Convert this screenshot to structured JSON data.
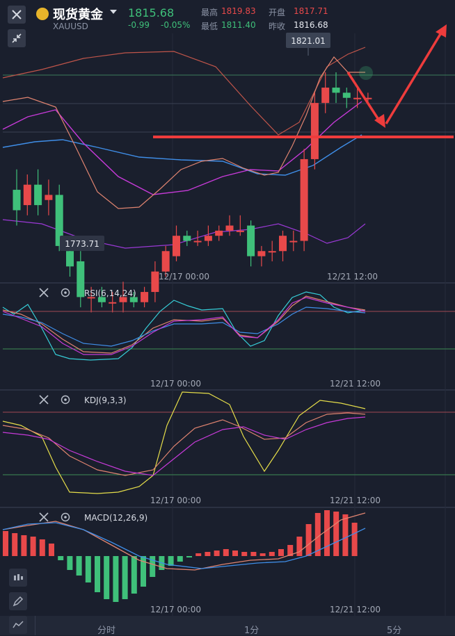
{
  "header": {
    "title": "现货黄金",
    "code": "XAUUSD",
    "price": "1815.68",
    "change": "-0.99",
    "change_pct": "-0.05%",
    "high_label": "最高",
    "high": "1819.83",
    "open_label": "开盘",
    "open": "1817.71",
    "low_label": "最低",
    "low": "1811.40",
    "prev_label": "昨收",
    "prev": "1816.68"
  },
  "main_chart": {
    "max_label": "1821.01",
    "min_label": "1773.71",
    "x_ticks": [
      "12/17 00:00",
      "12/21 12:00"
    ]
  },
  "rsi_panel": {
    "label": "RSI(6,14,24)",
    "x_ticks": [
      "12/17 00:00",
      "12/21 12:00"
    ]
  },
  "kdj_panel": {
    "label": "KDJ(9,3,3)",
    "x_ticks": [
      "12/17 00:00",
      "12/21 12:00"
    ]
  },
  "macd_panel": {
    "label": "MACD(12,26,9)",
    "x_ticks": [
      "12/17 00:00",
      "12/21 12:00"
    ]
  },
  "tabs": [
    "分时",
    "1分",
    "5分"
  ],
  "colors": {
    "up": "#e8494a",
    "down": "#3fc07a",
    "bg": "#1a1f2d"
  },
  "chart_data": {
    "type": "candlestick",
    "candles": [
      {
        "o": 1798,
        "c": 1794,
        "h": 1802,
        "l": 1791
      },
      {
        "o": 1795,
        "c": 1799,
        "h": 1801,
        "l": 1793
      },
      {
        "o": 1799,
        "c": 1795,
        "h": 1802,
        "l": 1793
      },
      {
        "o": 1796,
        "c": 1797,
        "h": 1800,
        "l": 1793
      },
      {
        "o": 1797,
        "c": 1787,
        "h": 1799,
        "l": 1786
      },
      {
        "o": 1786,
        "c": 1783,
        "h": 1789,
        "l": 1781
      },
      {
        "o": 1784,
        "c": 1777,
        "h": 1786,
        "l": 1775
      },
      {
        "o": 1777,
        "c": 1777,
        "h": 1779,
        "l": 1774
      },
      {
        "o": 1777,
        "c": 1776,
        "h": 1779,
        "l": 1775
      },
      {
        "o": 1776,
        "c": 1776,
        "h": 1778,
        "l": 1774
      },
      {
        "o": 1776,
        "c": 1777,
        "h": 1780,
        "l": 1774
      },
      {
        "o": 1777,
        "c": 1776,
        "h": 1778,
        "l": 1775
      },
      {
        "o": 1776,
        "c": 1778,
        "h": 1779,
        "l": 1775
      },
      {
        "o": 1778,
        "c": 1782,
        "h": 1784,
        "l": 1776
      },
      {
        "o": 1782,
        "c": 1786,
        "h": 1787,
        "l": 1781
      },
      {
        "o": 1785,
        "c": 1789,
        "h": 1791,
        "l": 1784
      },
      {
        "o": 1789,
        "c": 1788,
        "h": 1790,
        "l": 1787
      },
      {
        "o": 1788,
        "c": 1788,
        "h": 1790,
        "l": 1787
      },
      {
        "o": 1788,
        "c": 1789,
        "h": 1791,
        "l": 1787
      },
      {
        "o": 1789,
        "c": 1790,
        "h": 1791,
        "l": 1788
      },
      {
        "o": 1790,
        "c": 1791,
        "h": 1793,
        "l": 1789
      },
      {
        "o": 1790,
        "c": 1790,
        "h": 1793,
        "l": 1789
      },
      {
        "o": 1791,
        "c": 1785,
        "h": 1792,
        "l": 1783
      },
      {
        "o": 1785,
        "c": 1786,
        "h": 1787,
        "l": 1783
      },
      {
        "o": 1786,
        "c": 1786,
        "h": 1788,
        "l": 1784
      },
      {
        "o": 1786,
        "c": 1789,
        "h": 1790,
        "l": 1784
      },
      {
        "o": 1788,
        "c": 1788,
        "h": 1790,
        "l": 1786
      },
      {
        "o": 1788,
        "c": 1804,
        "h": 1806,
        "l": 1786
      },
      {
        "o": 1804,
        "c": 1815,
        "h": 1817,
        "l": 1802
      },
      {
        "o": 1815,
        "c": 1818,
        "h": 1821,
        "l": 1813
      },
      {
        "o": 1818,
        "c": 1817,
        "h": 1821,
        "l": 1815
      },
      {
        "o": 1817,
        "c": 1816,
        "h": 1818,
        "l": 1814
      },
      {
        "o": 1816,
        "c": 1816,
        "h": 1818,
        "l": 1814
      },
      {
        "o": 1816,
        "c": 1816,
        "h": 1817,
        "l": 1815
      }
    ]
  }
}
